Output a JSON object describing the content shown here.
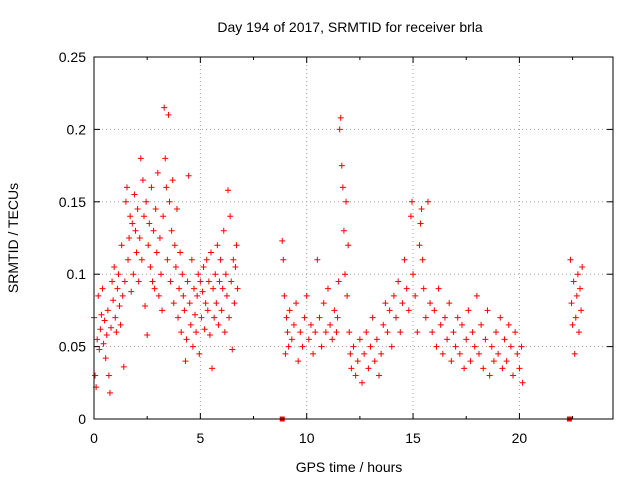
{
  "chart_data": {
    "type": "scatter",
    "title": "Day 194 of 2017, SRMTID for receiver brla",
    "xlabel": "GPS time / hours",
    "ylabel": "SRMTID / TECUs",
    "xlim": [
      0,
      24.4
    ],
    "ylim": [
      0,
      0.25
    ],
    "x_ticks": [
      "0",
      "5",
      "10",
      "15",
      "20"
    ],
    "y_ticks": [
      "0",
      "0.05",
      "0.1",
      "0.15",
      "0.2",
      "0.25"
    ],
    "grid": true,
    "legend": "none",
    "colors": {
      "points": "#ff0000",
      "grid": "#a0a0a0",
      "axes": "#000000"
    },
    "marker": "plus",
    "series": [
      {
        "points": [
          [
            0.0,
            0.07
          ],
          [
            0.05,
            0.03
          ],
          [
            0.1,
            0.022
          ],
          [
            0.15,
            0.055
          ],
          [
            0.2,
            0.085
          ],
          [
            0.25,
            0.048
          ],
          [
            0.3,
            0.062
          ],
          [
            0.35,
            0.072
          ],
          [
            0.4,
            0.09
          ],
          [
            0.45,
            0.052
          ],
          [
            0.5,
            0.068
          ],
          [
            0.55,
            0.042
          ],
          [
            0.6,
            0.058
          ],
          [
            0.65,
            0.075
          ],
          [
            0.7,
            0.03
          ],
          [
            0.75,
            0.018
          ],
          [
            0.8,
            0.063
          ],
          [
            0.85,
            0.095
          ],
          [
            0.9,
            0.082
          ],
          [
            0.95,
            0.105
          ],
          [
            1.0,
            0.07
          ],
          [
            1.05,
            0.06
          ],
          [
            1.1,
            0.09
          ],
          [
            1.15,
            0.1
          ],
          [
            1.2,
            0.078
          ],
          [
            1.25,
            0.065
          ],
          [
            1.3,
            0.12
          ],
          [
            1.35,
            0.085
          ],
          [
            1.4,
            0.036
          ],
          [
            1.45,
            0.095
          ],
          [
            1.5,
            0.15
          ],
          [
            1.55,
            0.16
          ],
          [
            1.6,
            0.11
          ],
          [
            1.65,
            0.125
          ],
          [
            1.7,
            0.14
          ],
          [
            1.75,
            0.088
          ],
          [
            1.8,
            0.135
          ],
          [
            1.85,
            0.1
          ],
          [
            1.9,
            0.155
          ],
          [
            1.95,
            0.13
          ],
          [
            2.0,
            0.115
          ],
          [
            2.05,
            0.145
          ],
          [
            2.1,
            0.095
          ],
          [
            2.15,
            0.125
          ],
          [
            2.2,
            0.18
          ],
          [
            2.25,
            0.11
          ],
          [
            2.3,
            0.165
          ],
          [
            2.35,
            0.14
          ],
          [
            2.4,
            0.078
          ],
          [
            2.45,
            0.15
          ],
          [
            2.5,
            0.058
          ],
          [
            2.55,
            0.12
          ],
          [
            2.6,
            0.135
          ],
          [
            2.65,
            0.105
          ],
          [
            2.7,
            0.16
          ],
          [
            2.75,
            0.095
          ],
          [
            2.8,
            0.13
          ],
          [
            2.85,
            0.09
          ],
          [
            2.9,
            0.145
          ],
          [
            2.95,
            0.115
          ],
          [
            3.0,
            0.17
          ],
          [
            3.05,
            0.085
          ],
          [
            3.1,
            0.125
          ],
          [
            3.15,
            0.1
          ],
          [
            3.2,
            0.075
          ],
          [
            3.25,
            0.14
          ],
          [
            3.3,
            0.215
          ],
          [
            3.35,
            0.18
          ],
          [
            3.4,
            0.16
          ],
          [
            3.45,
            0.11
          ],
          [
            3.5,
            0.21
          ],
          [
            3.55,
            0.15
          ],
          [
            3.6,
            0.095
          ],
          [
            3.65,
            0.13
          ],
          [
            3.7,
            0.165
          ],
          [
            3.75,
            0.08
          ],
          [
            3.8,
            0.12
          ],
          [
            3.85,
            0.105
          ],
          [
            3.9,
            0.145
          ],
          [
            3.95,
            0.07
          ],
          [
            4.0,
            0.09
          ],
          [
            4.05,
            0.115
          ],
          [
            4.1,
            0.06
          ],
          [
            4.15,
            0.1
          ],
          [
            4.2,
            0.085
          ],
          [
            4.25,
            0.075
          ],
          [
            4.3,
            0.04
          ],
          [
            4.35,
            0.055
          ],
          [
            4.4,
            0.095
          ],
          [
            4.45,
            0.168
          ],
          [
            4.5,
            0.08
          ],
          [
            4.55,
            0.065
          ],
          [
            4.6,
            0.11
          ],
          [
            4.65,
            0.05
          ],
          [
            4.7,
            0.09
          ],
          [
            4.75,
            0.072
          ],
          [
            4.8,
            0.06
          ],
          [
            4.85,
            0.085
          ],
          [
            4.9,
            0.1
          ],
          [
            4.95,
            0.045
          ],
          [
            5.0,
            0.095
          ],
          [
            5.05,
            0.07
          ],
          [
            5.1,
            0.088
          ],
          [
            5.15,
            0.105
          ],
          [
            5.2,
            0.062
          ],
          [
            5.25,
            0.08
          ],
          [
            5.3,
            0.11
          ],
          [
            5.35,
            0.075
          ],
          [
            5.4,
            0.095
          ],
          [
            5.45,
            0.058
          ],
          [
            5.5,
            0.115
          ],
          [
            5.55,
            0.035
          ],
          [
            5.6,
            0.09
          ],
          [
            5.65,
            0.07
          ],
          [
            5.7,
            0.1
          ],
          [
            5.75,
            0.08
          ],
          [
            5.8,
            0.12
          ],
          [
            5.85,
            0.065
          ],
          [
            5.9,
            0.095
          ],
          [
            5.95,
            0.11
          ],
          [
            6.0,
            0.075
          ],
          [
            6.05,
            0.09
          ],
          [
            6.1,
            0.13
          ],
          [
            6.15,
            0.06
          ],
          [
            6.2,
            0.1
          ],
          [
            6.25,
            0.085
          ],
          [
            6.3,
            0.158
          ],
          [
            6.35,
            0.07
          ],
          [
            6.4,
            0.14
          ],
          [
            6.45,
            0.095
          ],
          [
            6.5,
            0.048
          ],
          [
            6.55,
            0.11
          ],
          [
            6.6,
            0.08
          ],
          [
            6.65,
            0.105
          ],
          [
            6.7,
            0.12
          ],
          [
            6.75,
            0.09
          ],
          [
            8.85,
            0.123
          ],
          [
            8.9,
            0.11
          ],
          [
            8.95,
            0.085
          ],
          [
            9.0,
            0.045
          ],
          [
            9.05,
            0.07
          ],
          [
            9.1,
            0.06
          ],
          [
            9.15,
            0.05
          ],
          [
            9.2,
            0.075
          ],
          [
            9.3,
            0.055
          ],
          [
            9.4,
            0.065
          ],
          [
            9.5,
            0.08
          ],
          [
            9.6,
            0.04
          ],
          [
            9.7,
            0.06
          ],
          [
            9.8,
            0.05
          ],
          [
            9.9,
            0.07
          ],
          [
            10.0,
            0.085
          ],
          [
            10.1,
            0.055
          ],
          [
            10.2,
            0.065
          ],
          [
            10.3,
            0.045
          ],
          [
            10.4,
            0.06
          ],
          [
            10.5,
            0.11
          ],
          [
            10.6,
            0.07
          ],
          [
            10.7,
            0.05
          ],
          [
            10.8,
            0.08
          ],
          [
            10.9,
            0.06
          ],
          [
            11.0,
            0.09
          ],
          [
            11.1,
            0.065
          ],
          [
            11.2,
            0.055
          ],
          [
            11.3,
            0.075
          ],
          [
            11.4,
            0.06
          ],
          [
            11.45,
            0.07
          ],
          [
            11.5,
            0.095
          ],
          [
            11.55,
            0.2
          ],
          [
            11.6,
            0.208
          ],
          [
            11.65,
            0.175
          ],
          [
            11.7,
            0.16
          ],
          [
            11.75,
            0.13
          ],
          [
            11.8,
            0.1
          ],
          [
            11.85,
            0.15
          ],
          [
            11.9,
            0.085
          ],
          [
            11.95,
            0.12
          ],
          [
            12.0,
            0.06
          ],
          [
            12.05,
            0.045
          ],
          [
            12.1,
            0.035
          ],
          [
            12.2,
            0.05
          ],
          [
            12.3,
            0.03
          ],
          [
            12.4,
            0.04
          ],
          [
            12.5,
            0.055
          ],
          [
            12.6,
            0.025
          ],
          [
            12.7,
            0.045
          ],
          [
            12.8,
            0.06
          ],
          [
            12.9,
            0.035
          ],
          [
            13.0,
            0.05
          ],
          [
            13.1,
            0.07
          ],
          [
            13.2,
            0.04
          ],
          [
            13.3,
            0.055
          ],
          [
            13.4,
            0.03
          ],
          [
            13.5,
            0.045
          ],
          [
            13.6,
            0.065
          ],
          [
            13.7,
            0.08
          ],
          [
            13.8,
            0.06
          ],
          [
            13.9,
            0.075
          ],
          [
            14.0,
            0.05
          ],
          [
            14.1,
            0.085
          ],
          [
            14.2,
            0.07
          ],
          [
            14.3,
            0.095
          ],
          [
            14.4,
            0.06
          ],
          [
            14.5,
            0.08
          ],
          [
            14.6,
            0.11
          ],
          [
            14.7,
            0.09
          ],
          [
            14.8,
            0.075
          ],
          [
            14.9,
            0.14
          ],
          [
            14.95,
            0.15
          ],
          [
            15.0,
            0.1
          ],
          [
            15.1,
            0.085
          ],
          [
            15.2,
            0.06
          ],
          [
            15.3,
            0.12
          ],
          [
            15.35,
            0.135
          ],
          [
            15.4,
            0.145
          ],
          [
            15.45,
            0.11
          ],
          [
            15.5,
            0.09
          ],
          [
            15.6,
            0.07
          ],
          [
            15.7,
            0.15
          ],
          [
            15.8,
            0.08
          ],
          [
            15.9,
            0.06
          ],
          [
            16.0,
            0.075
          ],
          [
            16.1,
            0.05
          ],
          [
            16.2,
            0.09
          ],
          [
            16.3,
            0.065
          ],
          [
            16.4,
            0.045
          ],
          [
            16.5,
            0.07
          ],
          [
            16.6,
            0.055
          ],
          [
            16.7,
            0.08
          ],
          [
            16.8,
            0.04
          ],
          [
            16.9,
            0.06
          ],
          [
            17.0,
            0.05
          ],
          [
            17.1,
            0.07
          ],
          [
            17.2,
            0.045
          ],
          [
            17.3,
            0.065
          ],
          [
            17.4,
            0.035
          ],
          [
            17.5,
            0.055
          ],
          [
            17.6,
            0.075
          ],
          [
            17.7,
            0.04
          ],
          [
            17.8,
            0.06
          ],
          [
            17.9,
            0.05
          ],
          [
            18.0,
            0.085
          ],
          [
            18.1,
            0.045
          ],
          [
            18.2,
            0.065
          ],
          [
            18.3,
            0.035
          ],
          [
            18.4,
            0.055
          ],
          [
            18.5,
            0.075
          ],
          [
            18.6,
            0.03
          ],
          [
            18.7,
            0.05
          ],
          [
            18.8,
            0.04
          ],
          [
            18.9,
            0.06
          ],
          [
            19.0,
            0.045
          ],
          [
            19.1,
            0.07
          ],
          [
            19.2,
            0.035
          ],
          [
            19.3,
            0.055
          ],
          [
            19.4,
            0.04
          ],
          [
            19.5,
            0.065
          ],
          [
            19.6,
            0.05
          ],
          [
            19.7,
            0.03
          ],
          [
            19.8,
            0.06
          ],
          [
            19.9,
            0.045
          ],
          [
            20.0,
            0.035
          ],
          [
            20.1,
            0.05
          ],
          [
            20.15,
            0.025
          ],
          [
            22.4,
            0.11
          ],
          [
            22.45,
            0.08
          ],
          [
            22.5,
            0.065
          ],
          [
            22.55,
            0.095
          ],
          [
            22.6,
            0.045
          ],
          [
            22.65,
            0.07
          ],
          [
            22.7,
            0.085
          ],
          [
            22.75,
            0.1
          ],
          [
            22.8,
            0.06
          ],
          [
            22.85,
            0.09
          ],
          [
            22.9,
            0.075
          ],
          [
            22.95,
            0.105
          ]
        ]
      },
      {
        "marker": "square",
        "points": [
          [
            8.85,
            0.0
          ],
          [
            22.35,
            0.0
          ]
        ]
      }
    ]
  }
}
